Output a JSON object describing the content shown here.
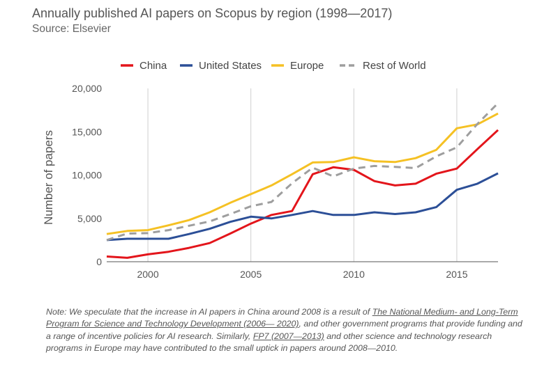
{
  "title": "Annually published AI papers on Scopus by region (1998—2017)",
  "subtitle": "Source: Elsevier",
  "chart_data": {
    "type": "line",
    "title": "Annually published AI papers on Scopus by region (1998—2017)",
    "xlabel": "",
    "ylabel": "Number of papers",
    "xlim": [
      1998,
      2017
    ],
    "ylim": [
      0,
      20000
    ],
    "x_ticks": [
      "2000",
      "2005",
      "2010",
      "2015"
    ],
    "x_tick_values": [
      2000,
      2005,
      2010,
      2015
    ],
    "y_ticks": [
      "0",
      "5,000",
      "10,000",
      "15,000",
      "20,000"
    ],
    "y_tick_values": [
      0,
      5000,
      10000,
      15000,
      20000
    ],
    "grid": "vertical",
    "legend_position": "top",
    "x": [
      1998,
      1999,
      2000,
      2001,
      2002,
      2003,
      2004,
      2005,
      2006,
      2007,
      2008,
      2009,
      2010,
      2011,
      2012,
      2013,
      2014,
      2015,
      2016,
      2017
    ],
    "series": [
      {
        "name": "China",
        "color": "#e3151b",
        "dash": "solid",
        "values": [
          600,
          450,
          850,
          1150,
          1600,
          2150,
          3250,
          4400,
          5400,
          5850,
          10100,
          10900,
          10600,
          9300,
          8800,
          9000,
          10150,
          10750,
          13000,
          15200
        ]
      },
      {
        "name": "United States",
        "color": "#2c4f97",
        "dash": "solid",
        "values": [
          2500,
          2650,
          2650,
          2650,
          3200,
          3800,
          4600,
          5200,
          5000,
          5400,
          5850,
          5400,
          5400,
          5700,
          5500,
          5700,
          6300,
          8300,
          9000,
          10200
        ]
      },
      {
        "name": "Europe",
        "color": "#f5c124",
        "dash": "solid",
        "values": [
          3200,
          3550,
          3650,
          4200,
          4800,
          5700,
          6800,
          7800,
          8800,
          10100,
          11450,
          11500,
          12050,
          11600,
          11500,
          11950,
          12900,
          15400,
          15850,
          17100
        ]
      },
      {
        "name": "Rest of World",
        "color": "#9e9e9e",
        "dash": "dashed",
        "values": [
          2500,
          3250,
          3300,
          3650,
          4150,
          4650,
          5500,
          6400,
          6900,
          9050,
          10850,
          9850,
          10750,
          11050,
          10950,
          10800,
          12150,
          13200,
          15900,
          18300
        ]
      }
    ]
  },
  "note": {
    "part1": "Note: We speculate that the increase in AI papers in China around 2008 is a result of ",
    "link1": "The National Medium- and Long-Term Program for Science and Technology Development (2006— 2020)",
    "part2": ", and other government programs that provide funding and a range of incentive policies for AI research. Similarly, ",
    "link2": "FP7 (2007—2013)",
    "part3": " and other science and technology research programs in Europe may have contributed to the small uptick in papers around 2008—2010."
  }
}
